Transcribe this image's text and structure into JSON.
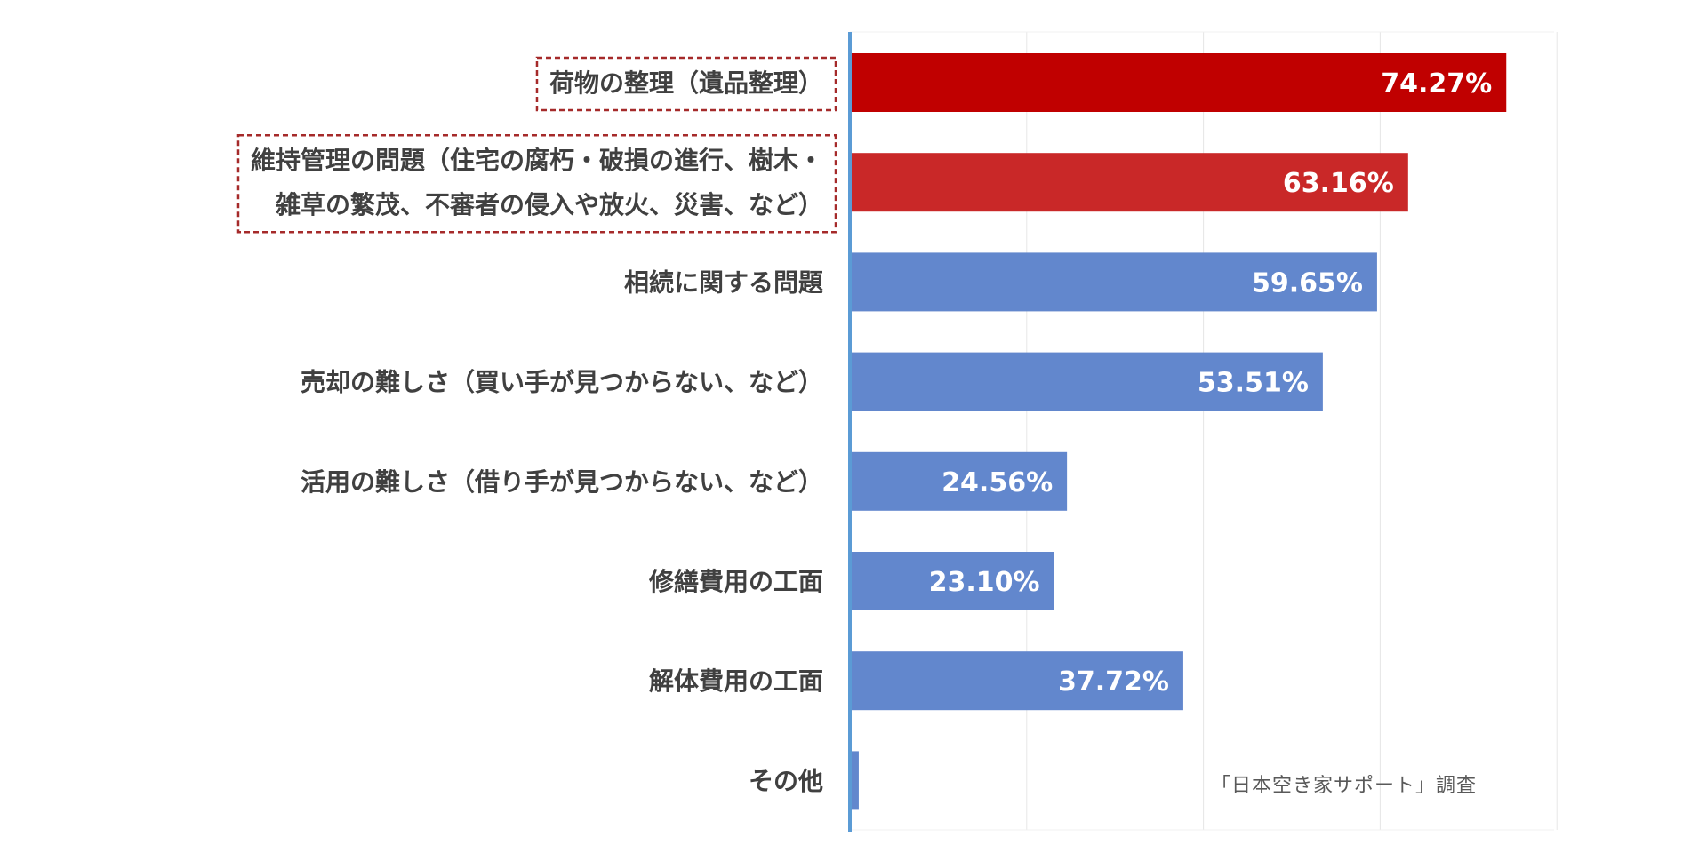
{
  "chart_data": {
    "type": "bar",
    "orientation": "horizontal",
    "categories": [
      [
        "荷物の整理（遺品整理）"
      ],
      [
        "維持管理の問題（住宅の腐朽・破損の進行、樹木・",
        "雑草の繁茂、不審者の侵入や放火、災害、など）"
      ],
      [
        "相続に関する問題"
      ],
      [
        "売却の難しさ（買い手が見つからない、など）"
      ],
      [
        "活用の難しさ（借り手が見つからない、など）"
      ],
      [
        "修繕費用の工面"
      ],
      [
        "解体費用の工面"
      ],
      [
        "その他"
      ]
    ],
    "values": [
      74.27,
      63.16,
      59.65,
      53.51,
      24.56,
      23.1,
      37.72,
      1.0
    ],
    "value_labels": [
      "74.27%",
      "63.16%",
      "59.65%",
      "53.51%",
      "24.56%",
      "23.10%",
      "37.72%",
      ""
    ],
    "bar_colors": [
      "#c00000",
      "#c92828",
      "#6287cd",
      "#6287cd",
      "#6287cd",
      "#6287cd",
      "#6287cd",
      "#6287cd"
    ],
    "highlighted": [
      true,
      true,
      false,
      false,
      false,
      false,
      false,
      false
    ],
    "highlight_border_color": "#a52a2a",
    "axis_color": "#5b9bd5",
    "grid_color": "#e6e6e6",
    "xlim": [
      0,
      80
    ],
    "grid": true,
    "legend": false
  },
  "source_note": "「日本空き家サポート」調査"
}
